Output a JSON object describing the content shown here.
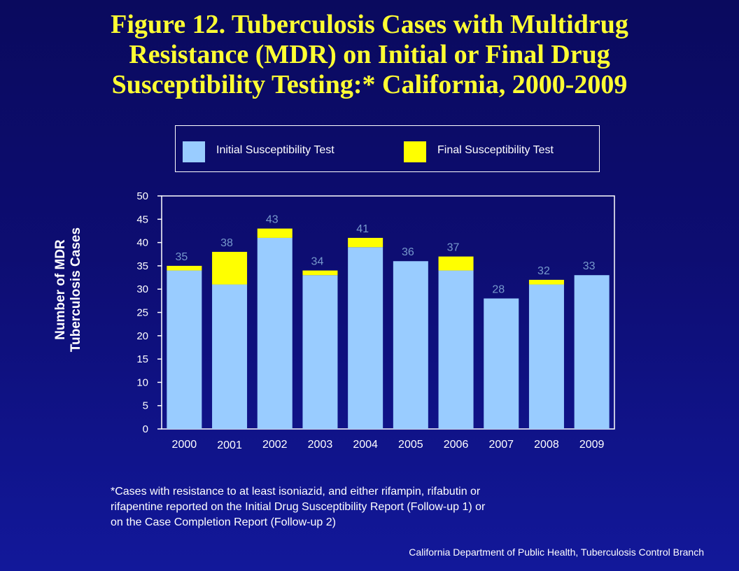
{
  "title_lines": [
    "Figure 12. Tuberculosis Cases with Multidrug",
    "Resistance (MDR) on Initial or Final Drug",
    "Susceptibility Testing:*  California, 2000-2009"
  ],
  "colors": {
    "background": "#0d0d72",
    "title": "#ffff33",
    "initial": "#99ccff",
    "final": "#ffff00",
    "text": "#ffffff"
  },
  "chart_data": {
    "type": "bar",
    "stacked": true,
    "categories": [
      "2000",
      "2001",
      "2002",
      "2003",
      "2004",
      "2005",
      "2006",
      "2007",
      "2008",
      "2009"
    ],
    "series": [
      {
        "name": "Initial Susceptibility Test",
        "values": [
          34,
          31,
          41,
          33,
          39,
          36,
          34,
          28,
          31,
          33
        ]
      },
      {
        "name": "Final Susceptibility Test",
        "values": [
          1,
          7,
          2,
          1,
          2,
          0,
          3,
          0,
          1,
          0
        ]
      }
    ],
    "totals": [
      35,
      38,
      43,
      34,
      41,
      36,
      37,
      28,
      32,
      33
    ],
    "ylabel_lines": [
      "Number of MDR",
      "Tuberculosis Cases"
    ],
    "xlabel": "",
    "ylim": [
      0,
      50
    ],
    "yticks": [
      0,
      5,
      10,
      15,
      20,
      25,
      30,
      35,
      40,
      45,
      50
    ],
    "grid": false,
    "legend_position": "top"
  },
  "footnote_lines": [
    "*Cases with resistance to at least isoniazid, and either rifampin, rifabutin or",
    "rifapentine reported on the Initial Drug Susceptibility Report  (Follow-up 1) or",
    "on the Case Completion Report (Follow-up 2)"
  ],
  "credit": "California Department  of Public Health, Tuberculosis Control Branch"
}
